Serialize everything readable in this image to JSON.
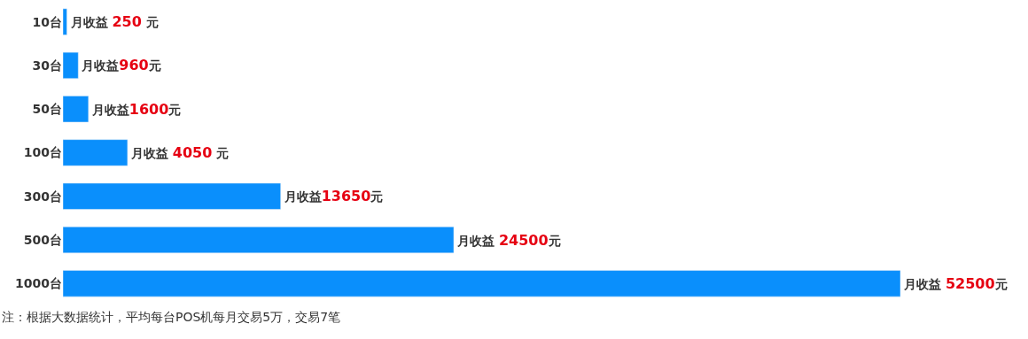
{
  "chart_data": {
    "type": "bar",
    "orientation": "horizontal",
    "categories": [
      "10台",
      "30台",
      "50台",
      "100台",
      "300台",
      "500台",
      "1000台"
    ],
    "values": [
      250,
      960,
      1600,
      4050,
      13650,
      24500,
      52500
    ],
    "value_labels": [
      "月收益 250 元",
      "月收益960元",
      "月收益1600元",
      "月收益 4050 元",
      "月收益13650元",
      "月收益 24500元",
      "月收益 52500元"
    ],
    "color": "#0a8ffc",
    "xlim": [
      0,
      60500
    ],
    "annotations": [
      "注：根据大数据统计，平均每台POS机每月交易5万，交易7笔"
    ]
  }
}
